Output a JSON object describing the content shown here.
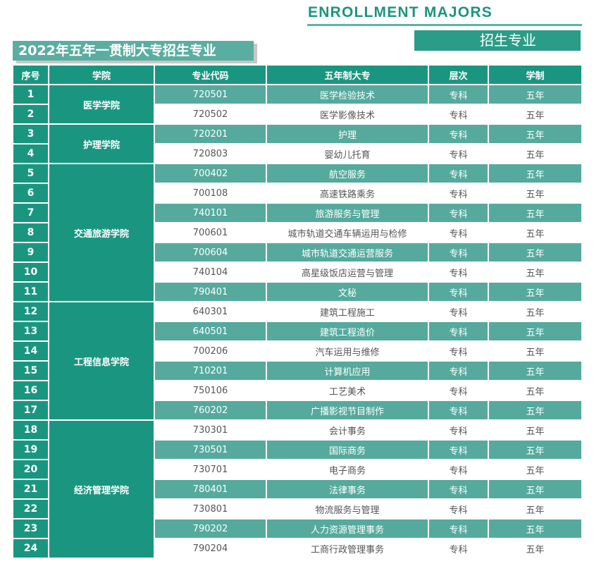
{
  "header": {
    "english_title": "ENROLLMENT MAJORS",
    "chinese_label": "招生专业",
    "title": "2022年五年一贯制大专招生专业"
  },
  "colors": {
    "teal_dark": "#1a9680",
    "teal_light": "#55aa9d"
  },
  "table": {
    "columns": [
      "序号",
      "学院",
      "专业代码",
      "五年制大专",
      "层次",
      "学制"
    ],
    "groups": [
      {
        "college": "医学学院",
        "rows": [
          [
            "1",
            "720501",
            "医学检验技术",
            "专科",
            "五年"
          ],
          [
            "2",
            "720502",
            "医学影像技术",
            "专科",
            "五年"
          ]
        ]
      },
      {
        "college": "护理学院",
        "rows": [
          [
            "3",
            "720201",
            "护理",
            "专科",
            "五年"
          ],
          [
            "4",
            "720803",
            "婴幼儿托育",
            "专科",
            "五年"
          ]
        ]
      },
      {
        "college": "交通旅游学院",
        "rows": [
          [
            "5",
            "700402",
            "航空服务",
            "专科",
            "五年"
          ],
          [
            "6",
            "700108",
            "高速铁路乘务",
            "专科",
            "五年"
          ],
          [
            "7",
            "740101",
            "旅游服务与管理",
            "专科",
            "五年"
          ],
          [
            "8",
            "700601",
            "城市轨道交通车辆运用与检修",
            "专科",
            "五年"
          ],
          [
            "9",
            "700604",
            "城市轨道交通运营服务",
            "专科",
            "五年"
          ],
          [
            "10",
            "740104",
            "高星级饭店运营与管理",
            "专科",
            "五年"
          ],
          [
            "11",
            "790401",
            "文秘",
            "专科",
            "五年"
          ]
        ]
      },
      {
        "college": "工程信息学院",
        "rows": [
          [
            "12",
            "640301",
            "建筑工程施工",
            "专科",
            "五年"
          ],
          [
            "13",
            "640501",
            "建筑工程造价",
            "专科",
            "五年"
          ],
          [
            "14",
            "700206",
            "汽车运用与维修",
            "专科",
            "五年"
          ],
          [
            "15",
            "710201",
            "计算机应用",
            "专科",
            "五年"
          ],
          [
            "16",
            "750106",
            "工艺美术",
            "专科",
            "五年"
          ],
          [
            "17",
            "760202",
            "广播影视节目制作",
            "专科",
            "五年"
          ]
        ]
      },
      {
        "college": "经济管理学院",
        "rows": [
          [
            "18",
            "730301",
            "会计事务",
            "专科",
            "五年"
          ],
          [
            "19",
            "730501",
            "国际商务",
            "专科",
            "五年"
          ],
          [
            "20",
            "730701",
            "电子商务",
            "专科",
            "五年"
          ],
          [
            "21",
            "780401",
            "法律事务",
            "专科",
            "五年"
          ],
          [
            "22",
            "730801",
            "物流服务与管理",
            "专科",
            "五年"
          ],
          [
            "23",
            "790202",
            "人力资源管理事务",
            "专科",
            "五年"
          ],
          [
            "24",
            "790204",
            "工商行政管理事务",
            "专科",
            "五年"
          ]
        ]
      }
    ]
  }
}
